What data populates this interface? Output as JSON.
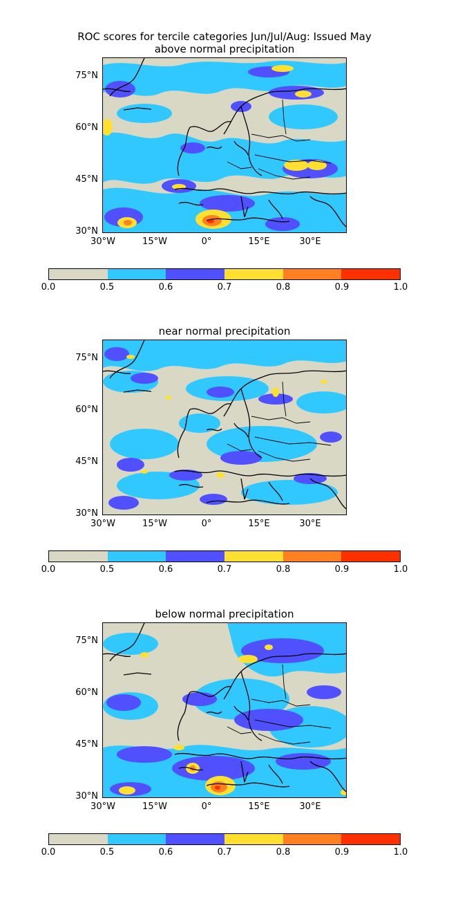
{
  "figure": {
    "title": "ROC scores for tercile categories Jun/Jul/Aug: Issued May"
  },
  "panels": [
    {
      "title": "above normal precipitation"
    },
    {
      "title": "near normal precipitation"
    },
    {
      "title": "below normal precipitation"
    }
  ],
  "axes": {
    "lat_labels": [
      "75°N",
      "60°N",
      "45°N",
      "30°N"
    ],
    "lon_labels": [
      "30°W",
      "15°W",
      "0°",
      "15°E",
      "30°E"
    ]
  },
  "colorbar": {
    "ticks": [
      "0.0",
      "0.5",
      "0.6",
      "0.7",
      "0.8",
      "0.9",
      "1.0"
    ],
    "colors": [
      "#d8d8c4",
      "#30c8ff",
      "#5050ff",
      "#ffe030",
      "#ff8020",
      "#ff3000"
    ]
  },
  "chart_data": [
    {
      "type": "heatmap",
      "title": "above normal precipitation",
      "lon_range": [
        -30,
        40
      ],
      "lat_range": [
        30,
        80
      ],
      "levels": [
        0.0,
        0.5,
        0.6,
        0.7,
        0.8,
        0.9,
        1.0
      ]
    },
    {
      "type": "heatmap",
      "title": "near normal precipitation",
      "lon_range": [
        -30,
        40
      ],
      "lat_range": [
        30,
        80
      ],
      "levels": [
        0.0,
        0.5,
        0.6,
        0.7,
        0.8,
        0.9,
        1.0
      ]
    },
    {
      "type": "heatmap",
      "title": "below normal precipitation",
      "lon_range": [
        -30,
        40
      ],
      "lat_range": [
        30,
        80
      ],
      "levels": [
        0.0,
        0.5,
        0.6,
        0.7,
        0.8,
        0.9,
        1.0
      ]
    }
  ]
}
